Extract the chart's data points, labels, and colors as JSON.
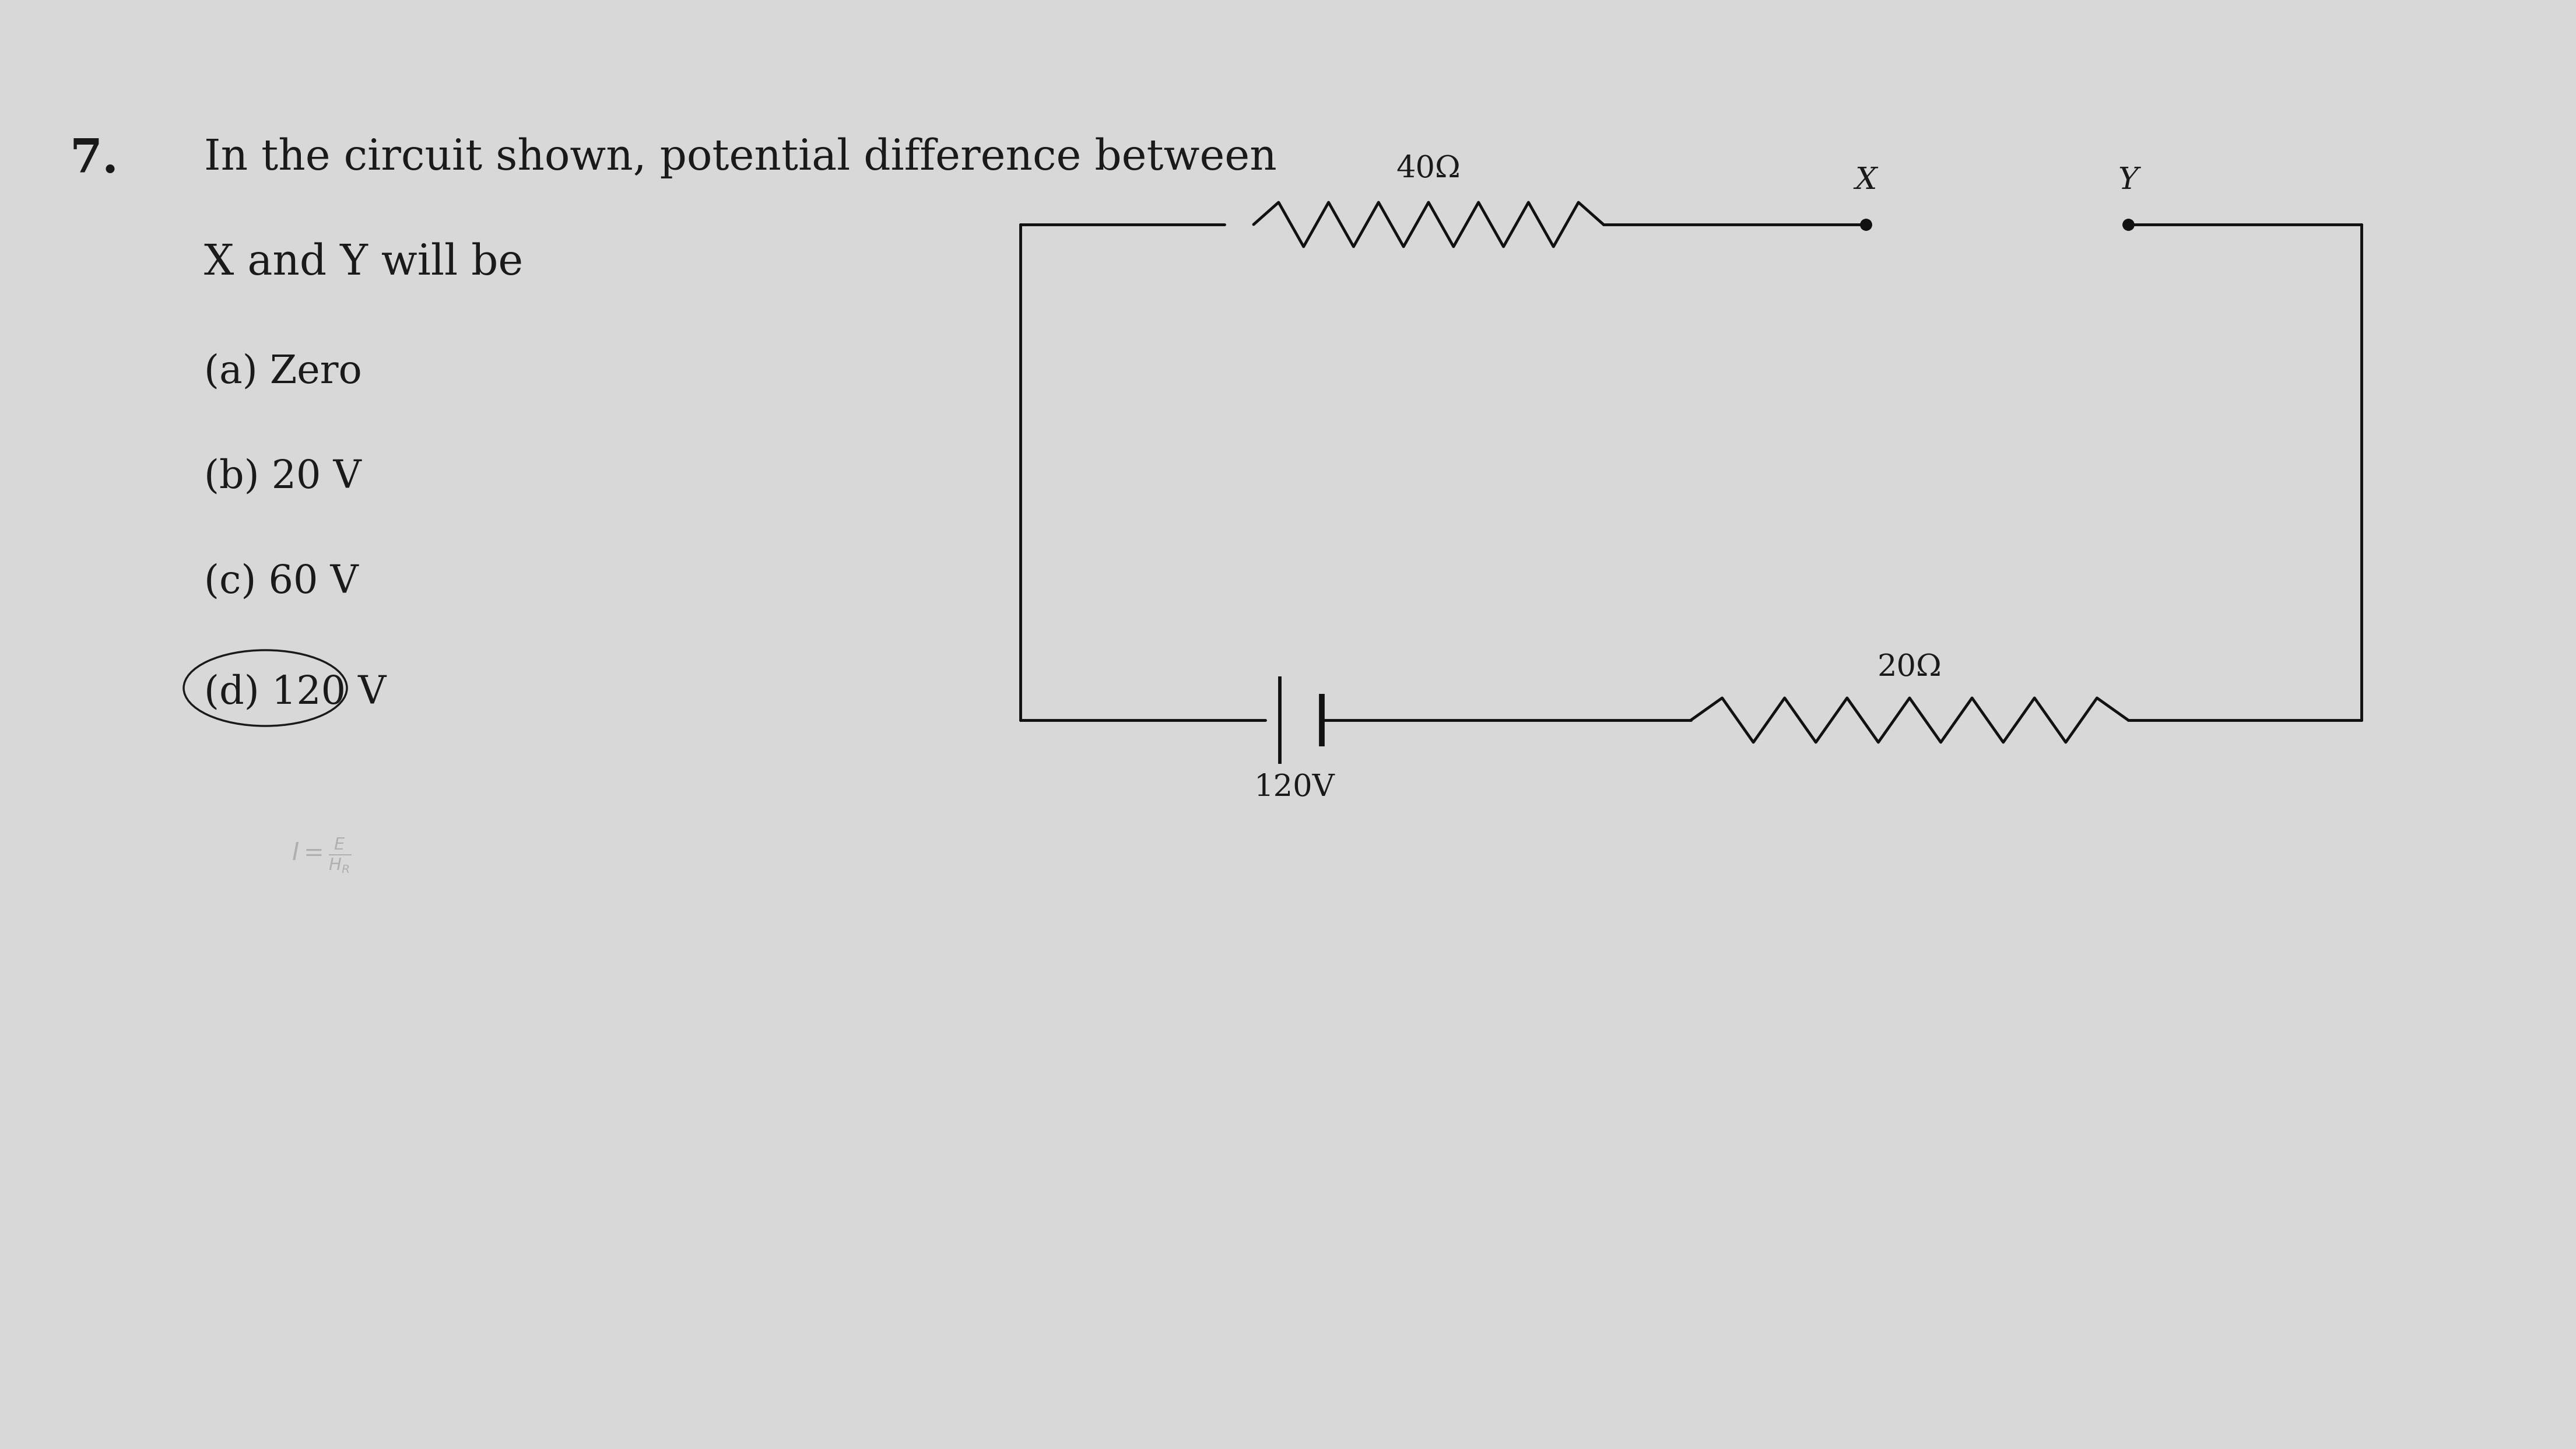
{
  "bg_color": "#d8d8d8",
  "text_color": "#1a1a1a",
  "question_number": "7.",
  "question_line1": "In the circuit shown, potential difference between",
  "question_line2": "X and Y will be",
  "options": [
    "(a) Zero",
    "(b) 20 V",
    "(c) 60 V",
    "(d) 120 V"
  ],
  "option_d_circled": true,
  "circuit": {
    "resistor_40_label": "40Ω",
    "resistor_20_label": "20Ω",
    "battery_label": "120V",
    "node_X_label": "X",
    "node_Y_label": "Y"
  },
  "line_color": "#111111",
  "line_width": 3.5,
  "font_size_question": 52,
  "font_size_options": 48,
  "font_size_circuit": 38,
  "font_size_qnum": 58
}
